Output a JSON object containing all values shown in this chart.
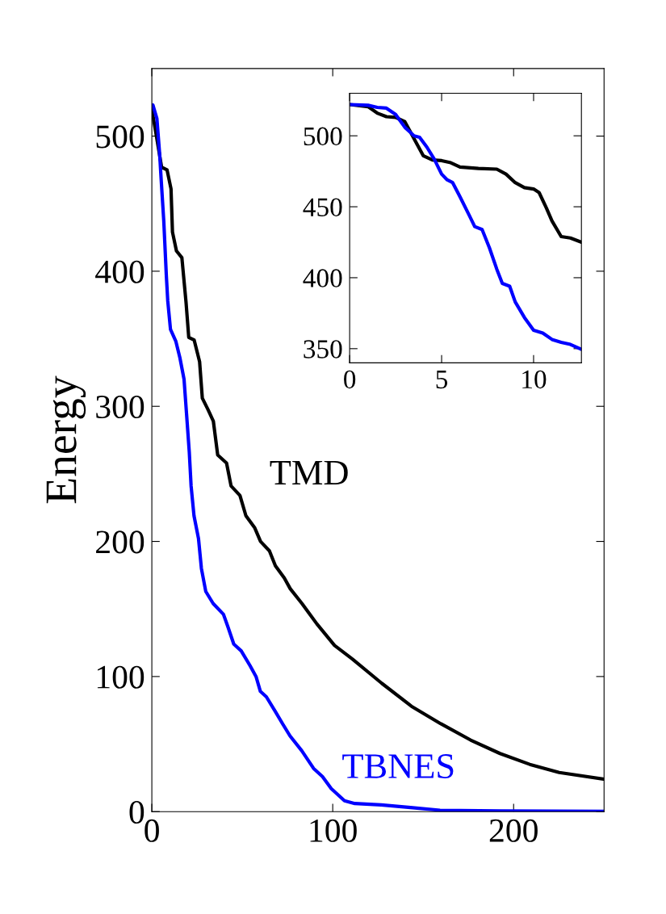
{
  "chart_data": [
    {
      "type": "line",
      "ylabel": "Energy",
      "xlim": [
        0,
        250
      ],
      "ylim": [
        0,
        550
      ],
      "xticks": [
        0,
        100,
        200
      ],
      "yticks": [
        0,
        100,
        200,
        300,
        400,
        500
      ],
      "grid": false,
      "legend": false,
      "series": [
        {
          "name": "TMD",
          "color": "#000000",
          "x": [
            0,
            2.4,
            5.4,
            8.4,
            10.6,
            11.4,
            13.6,
            16.6,
            18.9,
            20.4,
            23.4,
            26.4,
            27.9,
            30.9,
            34,
            36.4,
            41.3,
            43.8,
            48.7,
            52,
            56.9,
            60.1,
            65,
            68.3,
            73.2,
            76.5,
            83,
            91.2,
            101,
            110.8,
            127.1,
            143.5,
            159.8,
            176.2,
            192.5,
            208.9,
            225.2,
            250
          ],
          "values": [
            520,
            501,
            477,
            475,
            461,
            429,
            415,
            410,
            377,
            351,
            349,
            333,
            306,
            298,
            289,
            264,
            258,
            241,
            234,
            219,
            210,
            200,
            193,
            182,
            173,
            165,
            154,
            139,
            123,
            113,
            95,
            78,
            65,
            53,
            43,
            35,
            29,
            24
          ]
        },
        {
          "name": "TBNES",
          "color": "#0000ff",
          "x": [
            0,
            0.6,
            2.8,
            4.3,
            5.1,
            6.6,
            8,
            8.8,
            10.3,
            13.3,
            15.5,
            17.8,
            19.2,
            20.7,
            21.7,
            23.3,
            25.8,
            27.4,
            29.8,
            33.9,
            39.6,
            42,
            45.3,
            49.4,
            54.3,
            57.6,
            60,
            63.3,
            68.3,
            72.3,
            76.4,
            82.9,
            89.4,
            94.3,
            99.2,
            106.5,
            112.2,
            126.8,
            143,
            159.3,
            192,
            250
          ],
          "values": [
            522,
            523,
            513,
            487,
            469,
            437,
            397,
            378,
            357,
            348,
            336,
            320,
            294,
            266,
            241,
            219,
            202,
            180,
            163,
            154,
            146,
            137,
            124,
            119,
            108,
            100,
            89,
            85,
            74,
            65,
            56,
            45,
            32,
            26,
            17,
            8,
            6,
            5,
            3,
            1,
            0.5,
            0.3
          ]
        }
      ]
    },
    {
      "type": "line",
      "xlim": [
        0,
        12.6
      ],
      "ylim": [
        340,
        530
      ],
      "xticks": [
        0,
        5,
        10
      ],
      "yticks": [
        350,
        400,
        450,
        500
      ],
      "grid": false,
      "legend": false,
      "series": [
        {
          "color": "#000000",
          "x": [
            0,
            1,
            1.5,
            2,
            2.5,
            3,
            3.5,
            4,
            4.5,
            5,
            5.5,
            6,
            7,
            8,
            8.5,
            9,
            9.5,
            10,
            10.3,
            10.7,
            11,
            11.5,
            12,
            12.6
          ],
          "values": [
            522,
            520.5,
            516,
            513.5,
            513,
            510,
            498,
            486,
            483,
            482.5,
            481,
            478,
            477,
            476.5,
            473,
            467,
            463.5,
            462.5,
            460,
            449,
            440,
            429,
            428,
            425
          ]
        },
        {
          "color": "#0000ff",
          "x": [
            0,
            1,
            1.5,
            2,
            2.5,
            3,
            3.5,
            3.8,
            4.2,
            4.6,
            5,
            5.3,
            5.6,
            6,
            6.5,
            6.8,
            7.2,
            7.6,
            8,
            8.3,
            8.7,
            9,
            9.5,
            10,
            10.5,
            11,
            11.5,
            12,
            12.6
          ],
          "values": [
            522,
            521.5,
            520,
            519.5,
            515,
            506,
            500,
            499,
            492,
            483.5,
            473,
            469,
            467,
            457,
            444,
            436,
            434,
            421,
            406,
            396,
            394,
            383,
            372,
            363,
            361,
            356.5,
            354.5,
            353,
            349.5
          ]
        }
      ]
    }
  ]
}
